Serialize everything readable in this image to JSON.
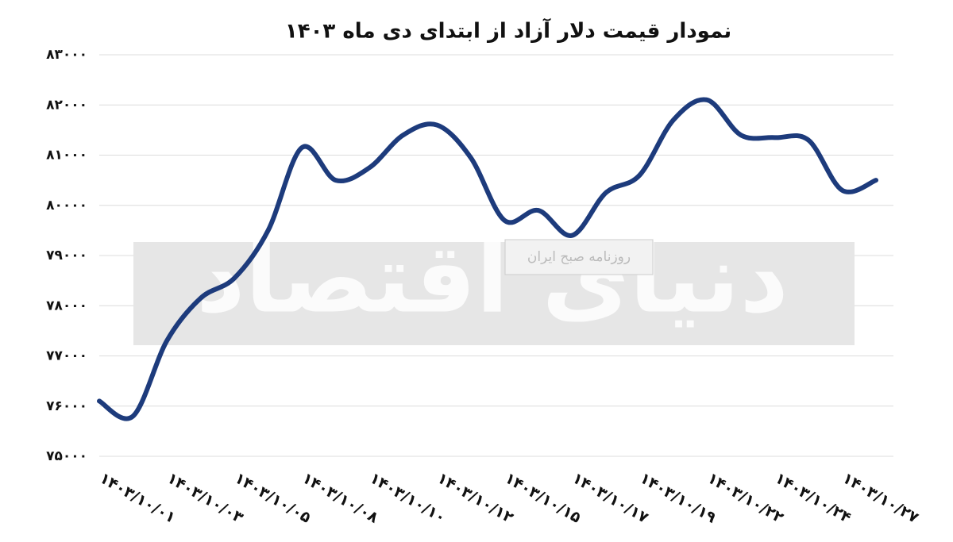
{
  "chart_data": {
    "type": "line",
    "title": "نمودار قیمت دلار آزاد از ابتدای دی ماه ۱۴۰۳",
    "watermark": {
      "title": "دنیای اقتصاد",
      "subtitle": "روزنامه صبح ایران"
    },
    "categories": [
      "۱۴۰۳/۱۰/۰۱",
      null,
      "۱۴۰۳/۱۰/۰۳",
      null,
      "۱۴۰۳/۱۰/۰۵",
      null,
      "۱۴۰۳/۱۰/۰۸",
      null,
      "۱۴۰۳/۱۰/۱۰",
      null,
      "۱۴۰۳/۱۰/۱۲",
      null,
      "۱۴۰۳/۱۰/۱۵",
      null,
      "۱۴۰۳/۱۰/۱۷",
      null,
      "۱۴۰۳/۱۰/۱۹",
      null,
      "۱۴۰۳/۱۰/۲۲",
      null,
      "۱۴۰۳/۱۰/۲۴",
      null,
      "۱۴۰۳/۱۰/۲۷",
      null
    ],
    "values": [
      76100,
      75800,
      77300,
      78150,
      78550,
      79500,
      81150,
      80500,
      80750,
      81400,
      81600,
      80950,
      79700,
      79900,
      79400,
      80250,
      80600,
      81700,
      82100,
      81400,
      81350,
      81300,
      80300,
      80500
    ],
    "color": "#1d3b7c",
    "ylim": [
      75000,
      83000
    ],
    "yticks": [
      {
        "value": 75000,
        "label": "۷۵۰۰۰"
      },
      {
        "value": 76000,
        "label": "۷۶۰۰۰"
      },
      {
        "value": 77000,
        "label": "۷۷۰۰۰"
      },
      {
        "value": 78000,
        "label": "۷۸۰۰۰"
      },
      {
        "value": 79000,
        "label": "۷۹۰۰۰"
      },
      {
        "value": 80000,
        "label": "۸۰۰۰۰"
      },
      {
        "value": 81000,
        "label": "۸۱۰۰۰"
      },
      {
        "value": 82000,
        "label": "۸۲۰۰۰"
      },
      {
        "value": 83000,
        "label": "۸۳۰۰۰"
      }
    ],
    "grid": true
  }
}
